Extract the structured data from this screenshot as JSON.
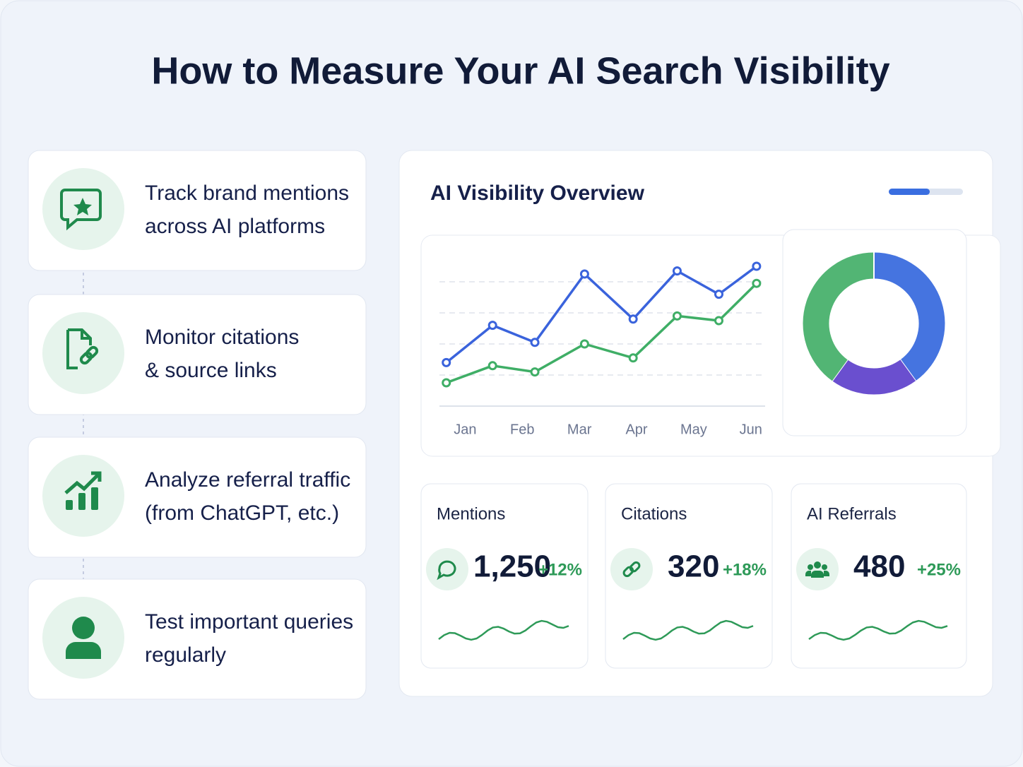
{
  "title": "How to Measure Your AI Search Visibility",
  "steps": [
    {
      "lines": [
        "Track brand mentions",
        "across AI platforms"
      ]
    },
    {
      "lines": [
        "Monitor citations",
        "& source links"
      ]
    },
    {
      "lines": [
        "Analyze referral traffic",
        "(from ChatGPT, etc.)"
      ]
    },
    {
      "lines": [
        "Test important queries",
        "regularly"
      ]
    }
  ],
  "dashboard": {
    "title": "AI Visibility Overview"
  },
  "chart_data": [
    {
      "type": "line",
      "x": [
        -0.33,
        0.48,
        1.22,
        2.09,
        2.94,
        3.71,
        4.44,
        5.1
      ],
      "xlim": [
        -0.45,
        5.25
      ],
      "xticks": [
        {
          "value": 0,
          "label": "Jan"
        },
        {
          "value": 1,
          "label": "Feb"
        },
        {
          "value": 2,
          "label": "Mar"
        },
        {
          "value": 3,
          "label": "Apr"
        },
        {
          "value": 4,
          "label": "May"
        },
        {
          "value": 5,
          "label": "Jun"
        }
      ],
      "ylim": [
        0,
        100
      ],
      "yticks": [
        0,
        20,
        40,
        60,
        80
      ],
      "grid": true,
      "series": [
        {
          "color": "#3a63dc",
          "values": [
            28,
            52,
            41,
            85,
            56,
            87,
            72,
            90
          ]
        },
        {
          "color": "#3fae66",
          "values": [
            15,
            26,
            22,
            40,
            31,
            58,
            55,
            79
          ]
        }
      ]
    },
    {
      "type": "pie",
      "donut": true,
      "values": [
        40,
        20,
        40
      ],
      "colors": [
        "#4574e0",
        "#6a4fcf",
        "#52b574"
      ]
    }
  ],
  "stats": [
    {
      "label": "Mentions",
      "value": "1,250",
      "change": "+12%"
    },
    {
      "label": "Citations",
      "value": "320",
      "change": "+18%"
    },
    {
      "label": "AI Referrals",
      "value": "480",
      "change": "+25%"
    }
  ]
}
